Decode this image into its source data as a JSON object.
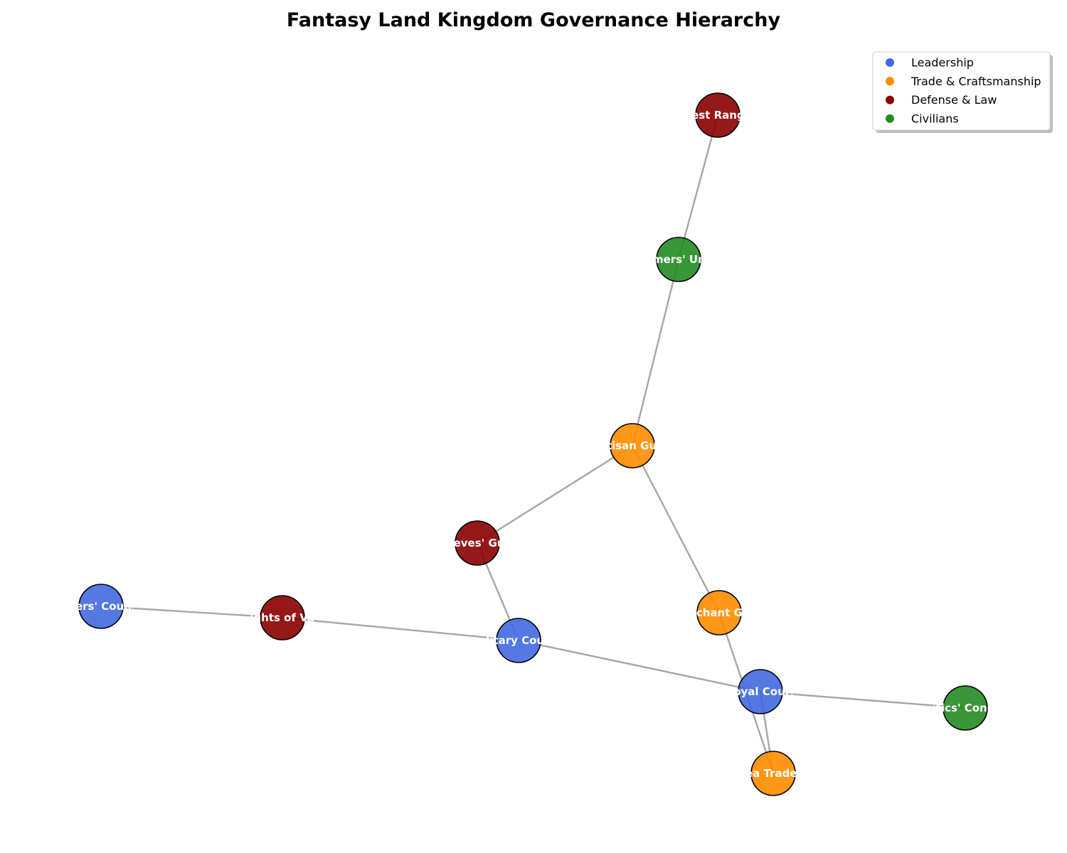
{
  "title": "Fantasy Land Kingdom Governance Hierarchy",
  "colors": {
    "Leadership": "#4169e1",
    "Trade & Craftsmanship": "#ff8c00",
    "Defense & Law": "#8b0000",
    "Civilians": "#228b22",
    "edge": "#a6a6a6"
  },
  "legend": {
    "placement": "top-right",
    "items": [
      {
        "label": "Leadership",
        "color": "#4169e1"
      },
      {
        "label": "Trade & Craftsmanship",
        "color": "#ff8c00"
      },
      {
        "label": "Defense & Law",
        "color": "#8b0000"
      },
      {
        "label": "Civilians",
        "color": "#228b22"
      }
    ]
  },
  "nodes": [
    {
      "id": "forest",
      "label": "Forest Rangers",
      "group": "Defense & Law"
    },
    {
      "id": "farmers",
      "label": "Farmers' Union",
      "group": "Civilians"
    },
    {
      "id": "artisan",
      "label": "Artisan Guild",
      "group": "Trade & Craftsmanship"
    },
    {
      "id": "thieves",
      "label": "Thieves' Guild",
      "group": "Defense & Law"
    },
    {
      "id": "elders",
      "label": "Elders' Council",
      "group": "Leadership"
    },
    {
      "id": "knights",
      "label": "Knights of Valor",
      "group": "Defense & Law"
    },
    {
      "id": "military",
      "label": "Military Council",
      "group": "Leadership"
    },
    {
      "id": "merchant",
      "label": "Merchant Guild",
      "group": "Trade & Craftsmanship"
    },
    {
      "id": "royal",
      "label": "Royal Court",
      "group": "Leadership"
    },
    {
      "id": "mystics",
      "label": "Mystics' Conclave",
      "group": "Civilians"
    },
    {
      "id": "sea",
      "label": "Sea Traders",
      "group": "Trade & Craftsmanship"
    }
  ],
  "edges": [
    [
      "forest",
      "farmers"
    ],
    [
      "farmers",
      "artisan"
    ],
    [
      "artisan",
      "thieves"
    ],
    [
      "artisan",
      "merchant"
    ],
    [
      "thieves",
      "military"
    ],
    [
      "elders",
      "knights"
    ],
    [
      "knights",
      "military"
    ],
    [
      "military",
      "royal"
    ],
    [
      "royal",
      "mystics"
    ],
    [
      "royal",
      "sea"
    ],
    [
      "merchant",
      "sea"
    ]
  ]
}
